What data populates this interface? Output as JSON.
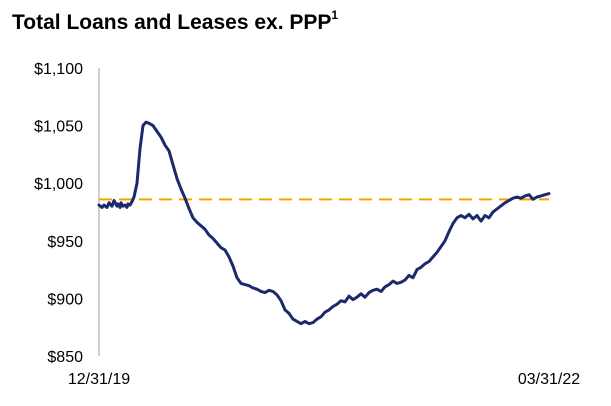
{
  "chart_data": {
    "type": "line",
    "title": "Total Loans and Leases ex. PPP",
    "title_footnote": "1",
    "xlabel": "",
    "ylabel": "",
    "x_tick_labels": [
      "12/31/19",
      "03/31/22"
    ],
    "x": [
      0,
      3,
      5,
      8,
      10,
      13,
      15,
      18,
      19,
      21,
      22,
      24,
      26,
      28,
      29,
      31,
      33,
      35,
      38,
      41,
      44,
      47,
      50,
      54,
      58,
      62,
      66,
      70,
      74,
      78,
      82,
      86,
      90,
      94,
      98,
      102,
      106,
      110,
      114,
      118,
      122,
      126,
      130,
      134,
      138,
      142,
      146,
      150,
      154,
      158,
      162,
      166,
      170,
      174,
      178,
      182,
      186,
      190,
      194,
      198,
      202,
      206,
      210,
      214,
      218,
      222,
      226,
      230,
      234,
      238,
      242,
      246,
      250,
      254,
      258,
      262,
      266,
      270,
      274,
      278,
      282,
      286,
      290,
      294,
      298,
      302,
      306,
      310,
      314,
      318,
      322,
      326,
      330,
      334,
      338,
      342,
      346,
      350,
      354,
      358,
      362,
      366,
      370,
      374,
      378,
      382,
      386,
      390,
      394,
      397,
      400,
      403,
      406,
      410,
      414,
      418,
      422,
      426,
      430,
      434,
      438,
      442,
      446,
      450
    ],
    "series": [
      {
        "name": "Total Loans and Leases ex. PPP",
        "color": "#1a2a6c",
        "values": [
          981,
          979,
          981,
          979,
          983,
          980,
          985,
          980,
          982,
          979,
          983,
          980,
          981,
          979,
          982,
          981,
          984,
          988,
          1000,
          1030,
          1050,
          1053,
          1052,
          1050,
          1045,
          1040,
          1033,
          1028,
          1016,
          1004,
          995,
          987,
          978,
          970,
          966,
          963,
          960,
          955,
          952,
          948,
          944,
          942,
          936,
          928,
          918,
          913,
          912,
          911,
          909,
          908,
          906,
          905,
          907,
          906,
          903,
          898,
          890,
          887,
          882,
          880,
          878,
          880,
          878,
          879,
          882,
          884,
          888,
          890,
          893,
          895,
          898,
          897,
          902,
          899,
          901,
          904,
          901,
          905,
          907,
          908,
          906,
          910,
          912,
          915,
          913,
          914,
          916,
          920,
          918,
          925,
          927,
          930,
          932,
          936,
          940,
          945,
          950,
          958,
          965,
          970,
          972,
          970,
          973,
          969,
          972,
          967,
          972,
          970,
          975,
          977,
          979,
          981,
          983,
          985,
          987,
          988,
          987,
          989,
          990,
          986,
          988,
          989,
          990,
          991
        ]
      }
    ],
    "reference_lines": [
      {
        "value": 986,
        "style": "dashed",
        "color": "#f5a300"
      }
    ],
    "ylim": [
      850,
      1100
    ],
    "y_ticks": [
      850,
      900,
      950,
      1000,
      1050,
      1100
    ],
    "y_tick_labels": [
      "$850",
      "$900",
      "$950",
      "$1,000",
      "$1,050",
      "$1,100"
    ],
    "grid": false,
    "legend": "none"
  }
}
